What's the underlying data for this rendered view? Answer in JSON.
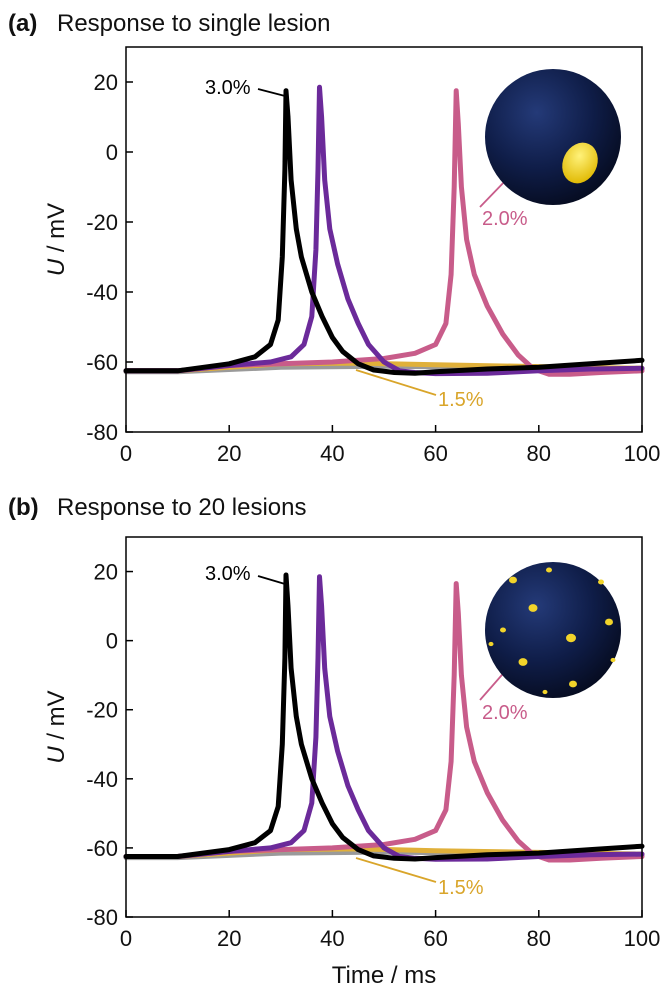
{
  "chart_data": [
    {
      "type": "line",
      "panel_label": "(a)",
      "title": "Response to single lesion",
      "xlabel": "",
      "ylabel_italic": "U",
      "ylabel_unit": " / mV",
      "xlim": [
        0,
        100
      ],
      "ylim": [
        -80,
        30
      ],
      "xticks": [
        0,
        20,
        40,
        60,
        80,
        100
      ],
      "yticks": [
        -80,
        -60,
        -40,
        -20,
        0,
        20
      ],
      "grid": false,
      "series": [
        {
          "label": "3.0%",
          "color": "#000000",
          "peak_t": 31,
          "peak_v": 17.5,
          "points": [
            [
              0,
              -62.5
            ],
            [
              10,
              -62.5
            ],
            [
              20,
              -60.5
            ],
            [
              25,
              -58.5
            ],
            [
              28,
              -55
            ],
            [
              29.5,
              -48
            ],
            [
              30.3,
              -30
            ],
            [
              30.8,
              -5
            ],
            [
              31,
              17.5
            ],
            [
              31.4,
              10
            ],
            [
              32,
              -8
            ],
            [
              33,
              -22
            ],
            [
              34,
              -30
            ],
            [
              36,
              -40
            ],
            [
              38,
              -47
            ],
            [
              40,
              -53
            ],
            [
              42,
              -57
            ],
            [
              45,
              -60.5
            ],
            [
              48,
              -62.3
            ],
            [
              52,
              -63
            ],
            [
              56,
              -63.2
            ],
            [
              60,
              -62.8
            ],
            [
              70,
              -62
            ],
            [
              80,
              -61.5
            ],
            [
              90,
              -60.5
            ],
            [
              100,
              -59.5
            ]
          ]
        },
        {
          "label": "",
          "color": "#6b2a9a",
          "peak_t": 37.5,
          "peak_v": 18.5,
          "points": [
            [
              0,
              -62.5
            ],
            [
              10,
              -62.5
            ],
            [
              20,
              -61
            ],
            [
              28,
              -60
            ],
            [
              32,
              -58.5
            ],
            [
              34.5,
              -55
            ],
            [
              36,
              -47
            ],
            [
              36.8,
              -28
            ],
            [
              37.2,
              -5
            ],
            [
              37.5,
              18.5
            ],
            [
              37.9,
              10
            ],
            [
              38.5,
              -8
            ],
            [
              39.5,
              -22
            ],
            [
              41,
              -32
            ],
            [
              43,
              -42
            ],
            [
              45,
              -49
            ],
            [
              47,
              -55
            ],
            [
              50,
              -60
            ],
            [
              53,
              -62.5
            ],
            [
              56,
              -63
            ],
            [
              60,
              -63.3
            ],
            [
              70,
              -63.2
            ],
            [
              80,
              -62.5
            ],
            [
              90,
              -62
            ],
            [
              100,
              -61.8
            ]
          ]
        },
        {
          "label": "2.0%",
          "color": "#c85c8a",
          "peak_t": 64,
          "peak_v": 17.5,
          "points": [
            [
              0,
              -62.5
            ],
            [
              10,
              -62.5
            ],
            [
              20,
              -61
            ],
            [
              30,
              -60.5
            ],
            [
              40,
              -60
            ],
            [
              50,
              -59
            ],
            [
              56,
              -57.5
            ],
            [
              60,
              -55
            ],
            [
              62,
              -49
            ],
            [
              63,
              -35
            ],
            [
              63.6,
              -10
            ],
            [
              64,
              17.5
            ],
            [
              64.4,
              8
            ],
            [
              65,
              -10
            ],
            [
              66,
              -25
            ],
            [
              67.5,
              -35
            ],
            [
              70,
              -44
            ],
            [
              73,
              -52
            ],
            [
              76,
              -58
            ],
            [
              79,
              -62
            ],
            [
              82,
              -63.5
            ],
            [
              86,
              -63.5
            ],
            [
              92,
              -63
            ],
            [
              100,
              -62.5
            ]
          ]
        },
        {
          "label": "1.5%",
          "color": "#e0b03a",
          "peak_t": null,
          "peak_v": null,
          "points": [
            [
              0,
              -62.5
            ],
            [
              10,
              -62.5
            ],
            [
              30,
              -60.5
            ],
            [
              45,
              -60.3
            ],
            [
              60,
              -60.8
            ],
            [
              80,
              -61.3
            ],
            [
              100,
              -61.8
            ]
          ]
        },
        {
          "label": "",
          "color": "#9a9a9a",
          "peak_t": null,
          "peak_v": null,
          "points": [
            [
              0,
              -62.8
            ],
            [
              10,
              -62.8
            ],
            [
              30,
              -61.5
            ],
            [
              50,
              -61.2
            ],
            [
              70,
              -61.5
            ],
            [
              100,
              -62
            ]
          ]
        }
      ],
      "inset": {
        "description": "sphere-single-lesion"
      }
    },
    {
      "type": "line",
      "panel_label": "(b)",
      "title": "Response to 20 lesions",
      "xlabel": "Time / ms",
      "ylabel_italic": "U",
      "ylabel_unit": " / mV",
      "xlim": [
        0,
        100
      ],
      "ylim": [
        -80,
        30
      ],
      "xticks": [
        0,
        20,
        40,
        60,
        80,
        100
      ],
      "yticks": [
        -80,
        -60,
        -40,
        -20,
        0,
        20
      ],
      "grid": false,
      "series": [
        {
          "label": "3.0%",
          "color": "#000000",
          "peak_t": 31,
          "peak_v": 19,
          "points": [
            [
              0,
              -62.5
            ],
            [
              10,
              -62.5
            ],
            [
              20,
              -60.5
            ],
            [
              25,
              -58.5
            ],
            [
              28,
              -55
            ],
            [
              29.5,
              -48
            ],
            [
              30.3,
              -30
            ],
            [
              30.8,
              -5
            ],
            [
              31,
              19
            ],
            [
              31.4,
              10
            ],
            [
              32,
              -8
            ],
            [
              33,
              -22
            ],
            [
              34,
              -30
            ],
            [
              36,
              -40
            ],
            [
              38,
              -47
            ],
            [
              40,
              -53
            ],
            [
              42,
              -57
            ],
            [
              45,
              -60.5
            ],
            [
              48,
              -62.3
            ],
            [
              52,
              -63
            ],
            [
              56,
              -63.2
            ],
            [
              60,
              -62.8
            ],
            [
              70,
              -62
            ],
            [
              80,
              -61.5
            ],
            [
              90,
              -60.5
            ],
            [
              100,
              -59.5
            ]
          ]
        },
        {
          "label": "",
          "color": "#6b2a9a",
          "peak_t": 37.5,
          "peak_v": 18.5,
          "points": [
            [
              0,
              -62.5
            ],
            [
              10,
              -62.5
            ],
            [
              20,
              -61
            ],
            [
              28,
              -60
            ],
            [
              32,
              -58.5
            ],
            [
              34.5,
              -55
            ],
            [
              36,
              -47
            ],
            [
              36.8,
              -28
            ],
            [
              37.2,
              -5
            ],
            [
              37.5,
              18.5
            ],
            [
              37.9,
              10
            ],
            [
              38.5,
              -8
            ],
            [
              39.5,
              -22
            ],
            [
              41,
              -32
            ],
            [
              43,
              -42
            ],
            [
              45,
              -49
            ],
            [
              47,
              -55
            ],
            [
              50,
              -60
            ],
            [
              53,
              -62.5
            ],
            [
              56,
              -63
            ],
            [
              60,
              -63.3
            ],
            [
              70,
              -63.2
            ],
            [
              80,
              -62.5
            ],
            [
              90,
              -62
            ],
            [
              100,
              -61.8
            ]
          ]
        },
        {
          "label": "2.0%",
          "color": "#c85c8a",
          "peak_t": 64,
          "peak_v": 16.5,
          "points": [
            [
              0,
              -62.5
            ],
            [
              10,
              -62.5
            ],
            [
              20,
              -61
            ],
            [
              30,
              -60.5
            ],
            [
              40,
              -60
            ],
            [
              50,
              -59
            ],
            [
              56,
              -57.5
            ],
            [
              60,
              -55
            ],
            [
              62,
              -49
            ],
            [
              63,
              -35
            ],
            [
              63.6,
              -10
            ],
            [
              64,
              16.5
            ],
            [
              64.4,
              8
            ],
            [
              65,
              -10
            ],
            [
              66,
              -25
            ],
            [
              67.5,
              -35
            ],
            [
              70,
              -44
            ],
            [
              73,
              -52
            ],
            [
              76,
              -58
            ],
            [
              79,
              -62
            ],
            [
              82,
              -63.5
            ],
            [
              86,
              -63.5
            ],
            [
              92,
              -63
            ],
            [
              100,
              -62.5
            ]
          ]
        },
        {
          "label": "1.5%",
          "color": "#e0b03a",
          "peak_t": null,
          "peak_v": null,
          "points": [
            [
              0,
              -62.5
            ],
            [
              10,
              -62.5
            ],
            [
              30,
              -60.5
            ],
            [
              45,
              -60.3
            ],
            [
              60,
              -60.8
            ],
            [
              80,
              -61.3
            ],
            [
              100,
              -61.8
            ]
          ]
        },
        {
          "label": "",
          "color": "#9a9a9a",
          "peak_t": null,
          "peak_v": null,
          "points": [
            [
              0,
              -62.8
            ],
            [
              10,
              -62.8
            ],
            [
              30,
              -61.5
            ],
            [
              50,
              -61.2
            ],
            [
              70,
              -61.5
            ],
            [
              100,
              -62
            ]
          ]
        }
      ],
      "inset": {
        "description": "sphere-twenty-lesions"
      }
    }
  ]
}
